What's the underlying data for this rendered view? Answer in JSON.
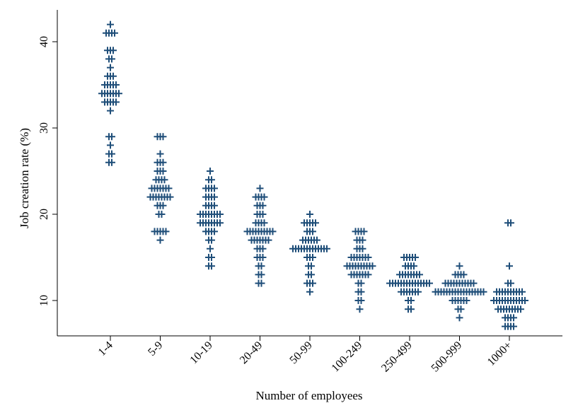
{
  "chart_data": {
    "type": "scatter",
    "style": "dot-strip",
    "marker": "plus",
    "marker_color": "#1f4e79",
    "xlabel": "Number of employees",
    "ylabel": "Job creation rate (%)",
    "categories": [
      "1-4",
      "5-9",
      "10-19",
      "20-49",
      "50-99",
      "100-249",
      "250-499",
      "500-999",
      "1000+"
    ],
    "yticks": [
      10,
      20,
      30,
      40
    ],
    "ylim": [
      6,
      43
    ],
    "grid": false,
    "legend": "none",
    "series": [
      {
        "values": [
          42,
          41,
          41,
          41,
          41,
          39,
          39,
          39,
          38,
          38,
          37,
          36,
          36,
          36,
          35,
          35,
          35,
          35,
          35,
          34,
          34,
          34,
          34,
          34,
          34,
          34,
          33,
          33,
          33,
          33,
          33,
          32,
          29,
          29,
          28,
          27,
          27,
          26,
          26
        ]
      },
      {
        "values": [
          29,
          29,
          29,
          27,
          26,
          26,
          26,
          25,
          25,
          25,
          24,
          24,
          24,
          24,
          23,
          23,
          23,
          23,
          23,
          23,
          23,
          22,
          22,
          22,
          22,
          22,
          22,
          22,
          22,
          21,
          21,
          21,
          20,
          20,
          18,
          18,
          18,
          18,
          18,
          17
        ]
      },
      {
        "values": [
          25,
          24,
          24,
          23,
          23,
          23,
          23,
          22,
          22,
          22,
          22,
          21,
          21,
          21,
          21,
          20,
          20,
          20,
          20,
          20,
          20,
          20,
          20,
          19,
          19,
          19,
          19,
          19,
          19,
          19,
          19,
          18,
          18,
          18,
          18,
          17,
          17,
          16,
          15,
          15,
          14,
          14
        ]
      },
      {
        "values": [
          23,
          22,
          22,
          22,
          22,
          21,
          21,
          21,
          20,
          20,
          20,
          19,
          19,
          19,
          19,
          18,
          18,
          18,
          18,
          18,
          18,
          18,
          18,
          18,
          18,
          17,
          17,
          17,
          17,
          17,
          17,
          17,
          16,
          16,
          16,
          15,
          15,
          15,
          14,
          14,
          13,
          13,
          12,
          12
        ]
      },
      {
        "values": [
          20,
          19,
          19,
          19,
          19,
          19,
          18,
          18,
          18,
          17,
          17,
          17,
          17,
          17,
          17,
          16,
          16,
          16,
          16,
          16,
          16,
          16,
          16,
          16,
          16,
          16,
          16,
          16,
          15,
          15,
          15,
          14,
          14,
          13,
          13,
          12,
          12,
          12,
          11
        ]
      },
      {
        "values": [
          18,
          18,
          18,
          18,
          17,
          17,
          17,
          16,
          16,
          16,
          15,
          15,
          15,
          15,
          15,
          15,
          15,
          14,
          14,
          14,
          14,
          14,
          14,
          14,
          14,
          14,
          14,
          13,
          13,
          13,
          13,
          13,
          13,
          13,
          12,
          12,
          11,
          11,
          10,
          10,
          9
        ]
      },
      {
        "values": [
          15,
          15,
          15,
          15,
          15,
          14,
          14,
          14,
          14,
          13,
          13,
          13,
          13,
          13,
          13,
          13,
          13,
          12,
          12,
          12,
          12,
          12,
          12,
          12,
          12,
          12,
          12,
          12,
          12,
          12,
          12,
          12,
          11,
          11,
          11,
          11,
          11,
          11,
          11,
          10,
          10,
          9,
          9
        ]
      },
      {
        "values": [
          14,
          13,
          13,
          13,
          13,
          12,
          12,
          12,
          12,
          12,
          12,
          12,
          12,
          12,
          12,
          12,
          11,
          11,
          11,
          11,
          11,
          11,
          11,
          11,
          11,
          11,
          11,
          11,
          11,
          11,
          11,
          11,
          11,
          11,
          10,
          10,
          10,
          10,
          10,
          10,
          9,
          9,
          8
        ]
      },
      {
        "values": [
          19,
          19,
          14,
          12,
          12,
          11,
          11,
          11,
          11,
          11,
          11,
          11,
          11,
          11,
          11,
          10,
          10,
          10,
          10,
          10,
          10,
          10,
          10,
          10,
          10,
          10,
          10,
          9,
          9,
          9,
          9,
          9,
          9,
          9,
          9,
          9,
          8,
          8,
          8,
          8,
          7,
          7,
          7,
          7
        ]
      }
    ]
  }
}
